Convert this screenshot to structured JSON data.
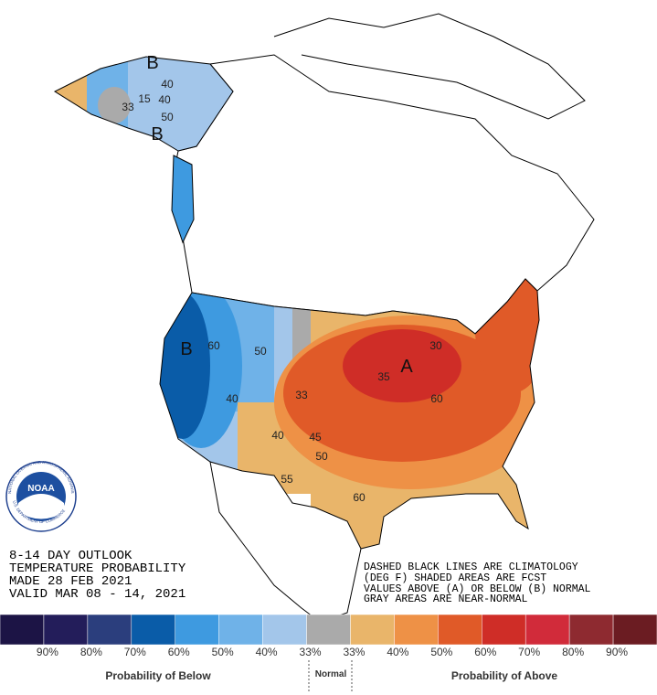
{
  "outlook": {
    "lines": [
      "8-14 DAY OUTLOOK",
      "TEMPERATURE PROBABILITY",
      "MADE  28 FEB 2021",
      "VALID  MAR 08 - 14, 2021"
    ]
  },
  "notes": [
    "DASHED BLACK LINES ARE CLIMATOLOGY",
    "(DEG F) SHADED AREAS ARE FCST",
    "VALUES ABOVE (A) OR BELOW (B) NORMAL",
    "GRAY AREAS ARE NEAR-NORMAL"
  ],
  "logo": {
    "name": "NOAA",
    "top": "NATIONAL OCEANIC AND ATMOSPHERIC ADMINISTRATION",
    "bottom": "U.S. DEPARTMENT OF COMMERCE"
  },
  "map_labels": [
    "B",
    "40",
    "15",
    "40",
    "50",
    "33",
    "B",
    "B",
    "60",
    "50",
    "40",
    "33",
    "40",
    "45",
    "50",
    "55",
    "60",
    "A",
    "35",
    "60",
    "30"
  ],
  "legend": {
    "colors": [
      "#1c1445",
      "#231d5a",
      "#2b3e7d",
      "#0a5ca8",
      "#3e9ae0",
      "#6fb2e8",
      "#a3c6ea",
      "#aaaaaa",
      "#e9b56a",
      "#ee9146",
      "#e05a28",
      "#cf2d27",
      "#d12b3a",
      "#8e2a30",
      "#6b1c22"
    ],
    "labels": [
      "90%",
      "80%",
      "70%",
      "60%",
      "50%",
      "40%",
      "33%",
      "33%",
      "40%",
      "50%",
      "60%",
      "70%",
      "80%",
      "90%"
    ],
    "below": "Probability of Below",
    "normal": "Normal",
    "above": "Probability of Above"
  }
}
